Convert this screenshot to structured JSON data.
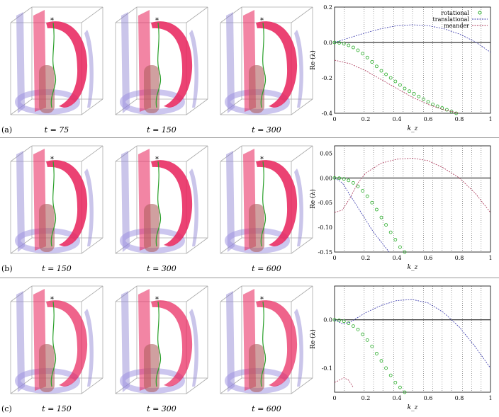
{
  "rows": [
    {
      "label": "(a)",
      "times": [
        "t = 75",
        "t = 150",
        "t = 300"
      ],
      "chart_data": {
        "type": "line",
        "xlabel": "k_z",
        "ylabel": "Re (λ)",
        "xlim": [
          0,
          1
        ],
        "ylim": [
          -0.4,
          0.2
        ],
        "xticks": [
          "0",
          "0.2",
          "0.4",
          "0.6",
          "0.8",
          "1"
        ],
        "yticks": [
          "0.2",
          "0.0",
          "-0.2",
          "-0.4"
        ],
        "yticks_values": [
          0.2,
          0.0,
          -0.2,
          -0.4
        ],
        "vlines": [
          0.063,
          0.19,
          0.25,
          0.31,
          0.38,
          0.44,
          0.5,
          0.57,
          0.63,
          0.69,
          0.75,
          0.82,
          0.88,
          0.94
        ],
        "legend": [
          "rotational",
          "translational",
          "meander"
        ],
        "series": [
          {
            "name": "rotational",
            "style": "circles",
            "color": "#22aa22",
            "x": [
              0,
              0.03,
              0.06,
              0.09,
              0.12,
              0.15,
              0.18,
              0.21,
              0.24,
              0.27,
              0.3,
              0.33,
              0.36,
              0.39,
              0.42,
              0.45,
              0.48,
              0.51,
              0.54,
              0.57,
              0.6,
              0.63,
              0.66,
              0.69,
              0.72,
              0.75,
              0.78
            ],
            "y": [
              0,
              -0.002,
              -0.007,
              -0.016,
              -0.028,
              -0.044,
              -0.063,
              -0.085,
              -0.11,
              -0.135,
              -0.16,
              -0.18,
              -0.2,
              -0.22,
              -0.24,
              -0.26,
              -0.275,
              -0.29,
              -0.305,
              -0.32,
              -0.335,
              -0.35,
              -0.36,
              -0.37,
              -0.38,
              -0.39,
              -0.4
            ]
          },
          {
            "name": "translational",
            "style": "line",
            "color": "#3333aa",
            "x": [
              0,
              0.1,
              0.2,
              0.3,
              0.4,
              0.5,
              0.6,
              0.7,
              0.8,
              0.9,
              1.0
            ],
            "y": [
              0,
              0.028,
              0.055,
              0.078,
              0.095,
              0.1,
              0.095,
              0.078,
              0.048,
              0.005,
              -0.055
            ]
          },
          {
            "name": "meander",
            "style": "line",
            "color": "#aa3355",
            "x": [
              0,
              0.1,
              0.2,
              0.3,
              0.4,
              0.5,
              0.6,
              0.7,
              0.8
            ],
            "y": [
              -0.1,
              -0.12,
              -0.16,
              -0.21,
              -0.26,
              -0.31,
              -0.35,
              -0.38,
              -0.4
            ]
          }
        ]
      }
    },
    {
      "label": "(b)",
      "times": [
        "t = 150",
        "t = 300",
        "t = 600"
      ],
      "chart_data": {
        "type": "line",
        "xlabel": "k_z",
        "ylabel": "Re (λ)",
        "xlim": [
          0,
          1
        ],
        "ylim": [
          -0.15,
          0.065
        ],
        "xticks": [
          "0",
          "0.2",
          "0.4",
          "0.6",
          "0.8",
          "1"
        ],
        "yticks": [
          "0.05",
          "0.00",
          "-0.05",
          "-0.10",
          "-0.15"
        ],
        "yticks_values": [
          0.05,
          0.0,
          -0.05,
          -0.1,
          -0.15
        ],
        "vlines": [
          0.063,
          0.19,
          0.25,
          0.31,
          0.38,
          0.44,
          0.5,
          0.57,
          0.63,
          0.69,
          0.75,
          0.82,
          0.88,
          0.94
        ],
        "legend": [],
        "series": [
          {
            "name": "rotational",
            "style": "circles",
            "color": "#22aa22",
            "x": [
              0,
              0.03,
              0.06,
              0.09,
              0.12,
              0.15,
              0.18,
              0.21,
              0.24,
              0.27,
              0.3,
              0.33,
              0.36,
              0.39,
              0.42,
              0.45
            ],
            "y": [
              0,
              -0.0005,
              -0.002,
              -0.005,
              -0.01,
              -0.017,
              -0.026,
              -0.037,
              -0.05,
              -0.064,
              -0.08,
              -0.095,
              -0.11,
              -0.125,
              -0.14,
              -0.15
            ]
          },
          {
            "name": "translational",
            "style": "line",
            "color": "#3333aa",
            "x": [
              0,
              0.05,
              0.1,
              0.15,
              0.2,
              0.25,
              0.3,
              0.35
            ],
            "y": [
              0,
              -0.01,
              -0.035,
              -0.06,
              -0.085,
              -0.11,
              -0.13,
              -0.15
            ]
          },
          {
            "name": "meander",
            "style": "line",
            "color": "#aa3355",
            "x": [
              0,
              0.05,
              0.1,
              0.15,
              0.2,
              0.3,
              0.4,
              0.5,
              0.6,
              0.7,
              0.8,
              0.9,
              1.0
            ],
            "y": [
              -0.07,
              -0.065,
              -0.04,
              -0.01,
              0.01,
              0.03,
              0.038,
              0.04,
              0.035,
              0.02,
              0.0,
              -0.03,
              -0.07
            ]
          }
        ]
      }
    },
    {
      "label": "(c)",
      "times": [
        "t = 150",
        "t = 300",
        "t = 600"
      ],
      "chart_data": {
        "type": "line",
        "xlabel": "k_z",
        "ylabel": "Re (λ)",
        "xlim": [
          0,
          1
        ],
        "ylim": [
          -0.15,
          0.07
        ],
        "xticks": [
          "0",
          "0.2",
          "0.4",
          "0.6",
          "0.8",
          "1"
        ],
        "yticks": [
          "0.0",
          "-0.1"
        ],
        "yticks_values": [
          0.0,
          -0.1
        ],
        "vlines": [
          0.063,
          0.19,
          0.25,
          0.31,
          0.38,
          0.44,
          0.5,
          0.57,
          0.63,
          0.69,
          0.75,
          0.82,
          0.88,
          0.94
        ],
        "legend": [],
        "series": [
          {
            "name": "rotational",
            "style": "circles",
            "color": "#22aa22",
            "x": [
              0,
              0.03,
              0.06,
              0.09,
              0.12,
              0.15,
              0.18,
              0.21,
              0.24,
              0.27,
              0.3,
              0.33,
              0.36,
              0.39,
              0.42,
              0.45
            ],
            "y": [
              0,
              -0.001,
              -0.003,
              -0.007,
              -0.013,
              -0.02,
              -0.03,
              -0.042,
              -0.055,
              -0.07,
              -0.085,
              -0.1,
              -0.115,
              -0.13,
              -0.14,
              -0.15
            ]
          },
          {
            "name": "translational",
            "style": "line",
            "color": "#3333aa",
            "x": [
              0,
              0.05,
              0.1,
              0.2,
              0.3,
              0.4,
              0.5,
              0.6,
              0.7,
              0.8,
              0.9,
              1.0
            ],
            "y": [
              0,
              -0.008,
              -0.005,
              0.015,
              0.03,
              0.04,
              0.042,
              0.035,
              0.015,
              -0.015,
              -0.055,
              -0.1
            ]
          },
          {
            "name": "meander",
            "style": "line",
            "color": "#aa3355",
            "x": [
              0,
              0.03,
              0.06,
              0.09,
              0.12
            ],
            "y": [
              -0.13,
              -0.125,
              -0.12,
              -0.125,
              -0.14
            ]
          }
        ]
      }
    }
  ]
}
